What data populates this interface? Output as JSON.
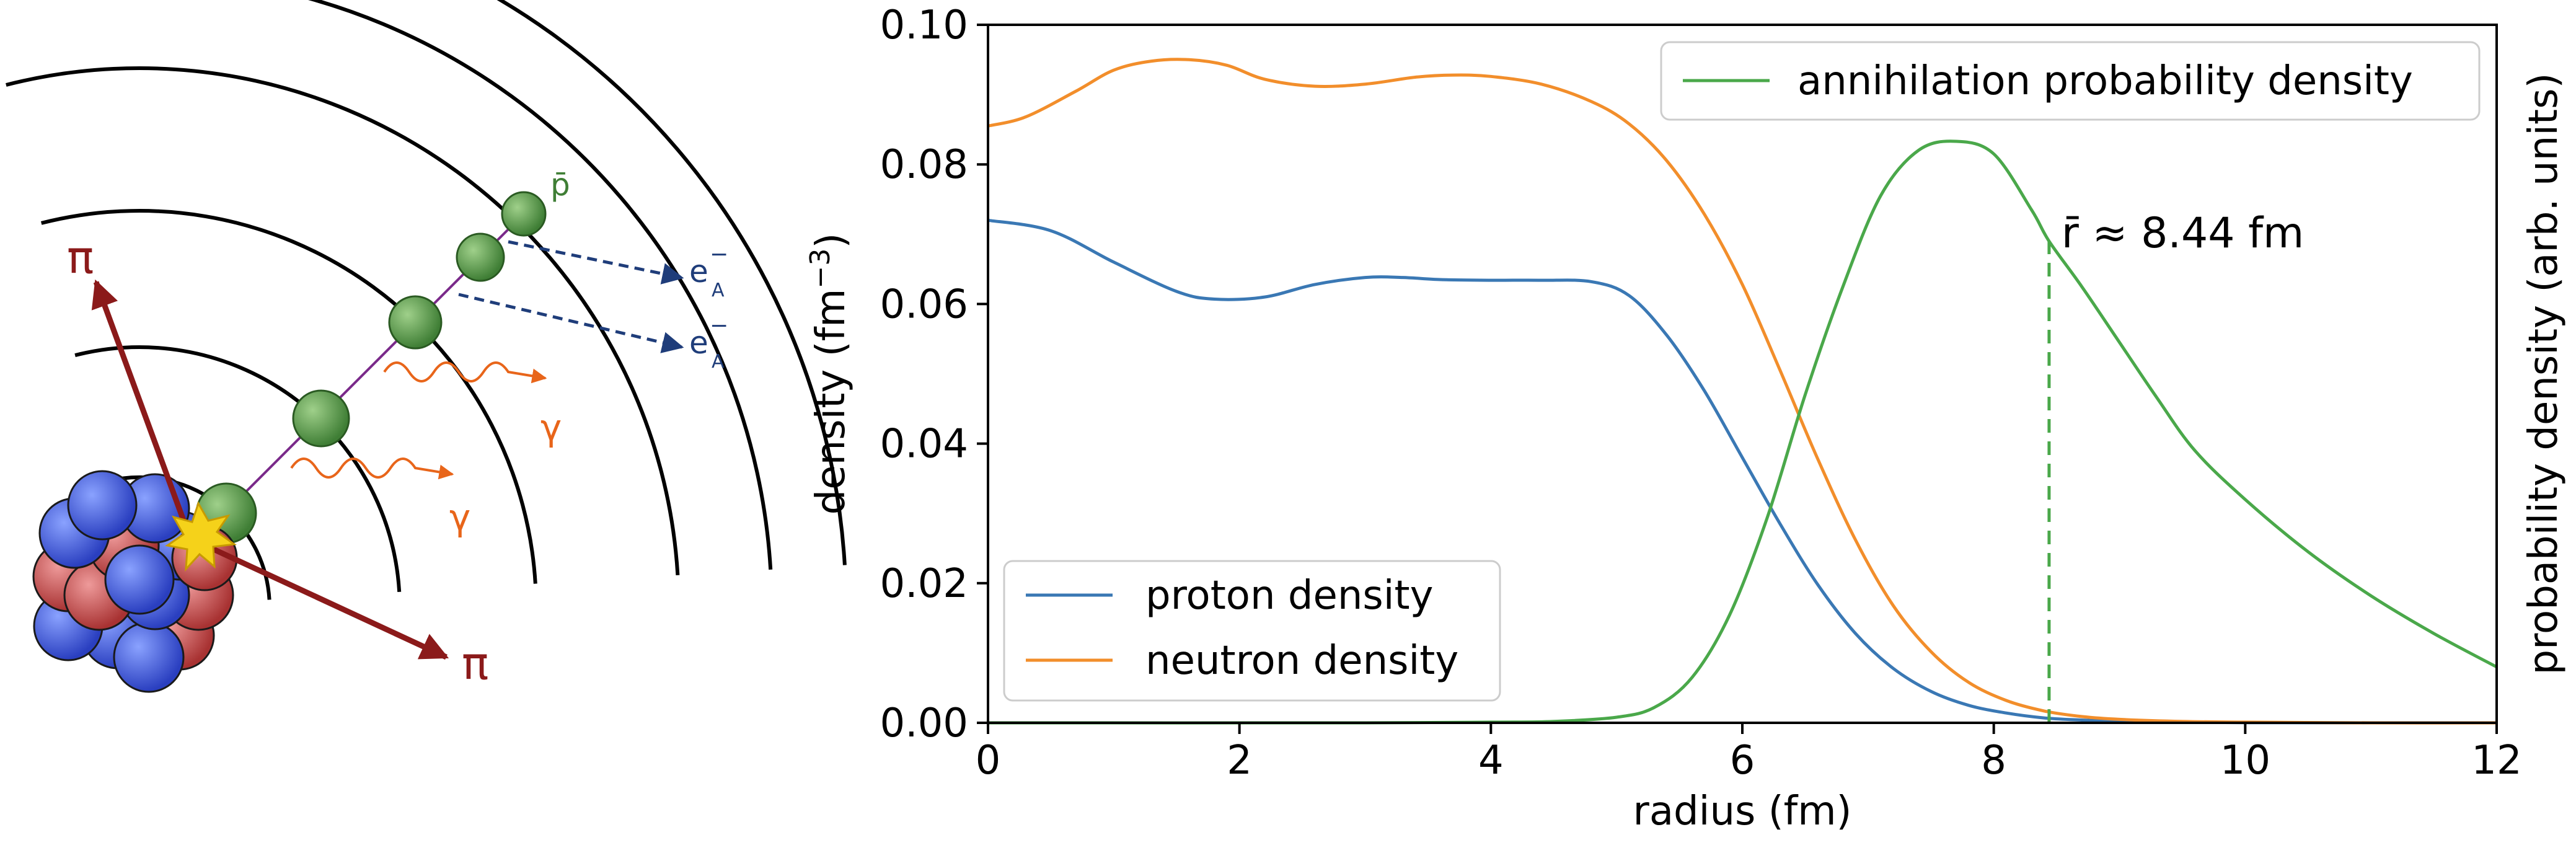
{
  "diagram": {
    "pbar_label": "p̄",
    "electron_label_main": "e",
    "electron_label_sup": "−",
    "electron_label_sub": "A",
    "gamma_label": "γ",
    "pion_label": "π",
    "colors": {
      "shell": "#000000",
      "antiproton": "#5a9a4a",
      "cascade_line": "#7a2a8a",
      "electron_arrow": "#1f3d7a",
      "gamma": "#e8651a",
      "pion_arrow": "#8b1a1a",
      "flash": "#f5d21a",
      "proton": "#c04a4a",
      "neutron": "#3a5ad8"
    }
  },
  "chart_data": {
    "type": "line",
    "xlabel": "radius (fm)",
    "ylabel": "density (fm⁻³)",
    "ylabel_prefix": "density (fm",
    "ylabel_sup": "−3",
    "ylabel_suffix": ")",
    "y2label": "probability density (arb. units)",
    "xlim": [
      0,
      12
    ],
    "ylim": [
      0,
      0.1
    ],
    "xticks": [
      "0",
      "2",
      "4",
      "6",
      "8",
      "10",
      "12"
    ],
    "yticks": [
      "0.00",
      "0.02",
      "0.04",
      "0.06",
      "0.08",
      "0.10"
    ],
    "grid": false,
    "legends": [
      {
        "placement": "lower-left",
        "entries": [
          "proton density",
          "neutron density"
        ]
      },
      {
        "placement": "upper-right",
        "entries": [
          "annihilation probability density"
        ]
      }
    ],
    "annotation": {
      "text": "r̄ ≈ 8.44 fm",
      "x": 8.44,
      "y": 0.069
    },
    "series": [
      {
        "name": "proton density",
        "color": "#3a78b4",
        "x": [
          0,
          0.5,
          1,
          1.5,
          1.8,
          2.2,
          2.6,
          3,
          3.3,
          3.6,
          4,
          4.4,
          4.8,
          5.1,
          5.4,
          5.7,
          6,
          6.3,
          6.6,
          6.9,
          7.2,
          7.5,
          7.8,
          8.1,
          8.4,
          8.7,
          9,
          9.5,
          10,
          11,
          12
        ],
        "values": [
          0.072,
          0.0705,
          0.066,
          0.0618,
          0.0607,
          0.061,
          0.0628,
          0.0638,
          0.0638,
          0.0635,
          0.0634,
          0.0634,
          0.0632,
          0.0612,
          0.0555,
          0.0475,
          0.038,
          0.0285,
          0.0198,
          0.0128,
          0.0078,
          0.0045,
          0.0025,
          0.0014,
          0.0007,
          0.0004,
          0.0002,
          0.0001,
          3e-05,
          0.0,
          0.0
        ]
      },
      {
        "name": "neutron density",
        "color": "#f28e2b",
        "x": [
          0,
          0.3,
          0.7,
          1,
          1.3,
          1.6,
          1.9,
          2.2,
          2.6,
          3,
          3.4,
          3.7,
          4,
          4.4,
          4.8,
          5.1,
          5.4,
          5.7,
          6,
          6.3,
          6.6,
          6.9,
          7.2,
          7.5,
          7.8,
          8.1,
          8.4,
          8.7,
          9,
          9.5,
          10,
          11,
          12
        ],
        "values": [
          0.0855,
          0.0868,
          0.0905,
          0.0935,
          0.0948,
          0.095,
          0.0942,
          0.0922,
          0.0912,
          0.0915,
          0.0925,
          0.0928,
          0.0926,
          0.0915,
          0.089,
          0.0858,
          0.0805,
          0.0728,
          0.0628,
          0.0505,
          0.0378,
          0.0262,
          0.0168,
          0.0102,
          0.0058,
          0.0032,
          0.0017,
          0.0009,
          0.0005,
          0.0002,
          0.0001,
          0.0,
          0.0
        ]
      },
      {
        "name": "annihilation probability density",
        "color": "#4aa84a",
        "x": [
          0,
          3,
          4,
          4.5,
          5,
          5.3,
          5.6,
          5.9,
          6.2,
          6.5,
          6.8,
          7.1,
          7.4,
          7.7,
          8,
          8.3,
          8.44,
          8.7,
          9,
          9.3,
          9.6,
          10,
          10.5,
          11,
          11.5,
          12
        ],
        "values": [
          0.0,
          0.0,
          0.0001,
          0.0002,
          0.0008,
          0.0022,
          0.0065,
          0.0155,
          0.0295,
          0.047,
          0.0625,
          0.0755,
          0.082,
          0.0833,
          0.0815,
          0.0735,
          0.069,
          0.0625,
          0.0545,
          0.0465,
          0.039,
          0.032,
          0.0245,
          0.0182,
          0.0128,
          0.008
        ]
      }
    ]
  }
}
